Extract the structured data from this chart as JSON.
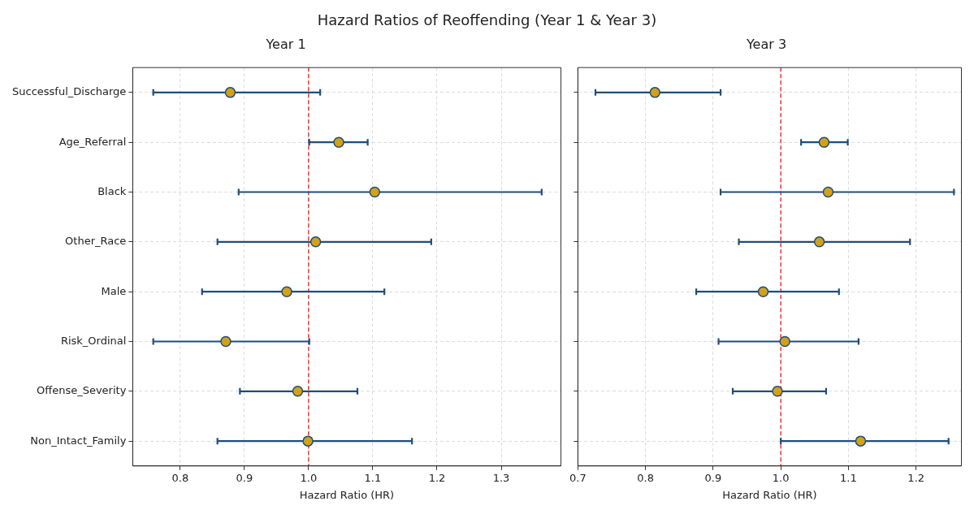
{
  "chart_data": [
    {
      "type": "scatter",
      "title": "Hazard Ratios of Reoffending (Year 1 & Year 3)",
      "subtitle": "Year 1",
      "orientation": "horizontal",
      "xlabel": "Hazard Ratio (HR)",
      "categories": [
        "Successful_Discharge",
        "Age_Referral",
        "Black",
        "Other_Race",
        "Male",
        "Risk_Ordinal",
        "Offense_Severity",
        "Non_Intact_Family"
      ],
      "values": [
        0.878,
        1.047,
        1.103,
        1.011,
        0.966,
        0.871,
        0.983,
        0.999
      ],
      "errors": [
        [
          0.758,
          1.018
        ],
        [
          1.001,
          1.092
        ],
        [
          0.891,
          1.363
        ],
        [
          0.858,
          1.191
        ],
        [
          0.834,
          1.118
        ],
        [
          0.758,
          1.001
        ],
        [
          0.893,
          1.076
        ],
        [
          0.858,
          1.161
        ]
      ],
      "color": "#d4a017",
      "marker": "circle",
      "xlim": [
        0.726,
        1.393
      ],
      "xticks": [
        0.8,
        0.9,
        {
          "value": 1,
          "label": "1.0"
        },
        1.1,
        1.2,
        1.3
      ],
      "ref_lines": [
        {
          "axis": "x",
          "value": 1,
          "color": "#ff0000",
          "line_style": "dashed"
        }
      ],
      "grid": true
    },
    {
      "type": "scatter",
      "subtitle": "Year 3",
      "orientation": "horizontal",
      "xlabel": "Hazard Ratio (HR)",
      "categories": [
        null,
        null,
        null,
        null,
        null,
        null,
        null,
        null
      ],
      "values": [
        0.814,
        1.064,
        1.07,
        1.057,
        0.974,
        1.006,
        0.995,
        1.118
      ],
      "errors": [
        [
          0.726,
          0.911
        ],
        [
          1.03,
          1.099
        ],
        [
          0.911,
          1.256
        ],
        [
          0.938,
          1.191
        ],
        [
          0.875,
          1.086
        ],
        [
          0.908,
          1.115
        ],
        [
          0.929,
          1.067
        ],
        [
          1.0,
          1.248
        ]
      ],
      "color": "#d4a017",
      "marker": "circle",
      "xlim": [
        0.7,
        1.267
      ],
      "xticks": [
        0.7,
        0.8,
        0.9,
        {
          "value": 1,
          "label": "1.0"
        },
        1.1,
        1.2
      ],
      "ref_lines": [
        {
          "axis": "x",
          "value": 1,
          "color": "#ff0000",
          "line_style": "dashed"
        }
      ],
      "grid": true,
      "tick_labels": "x"
    }
  ]
}
